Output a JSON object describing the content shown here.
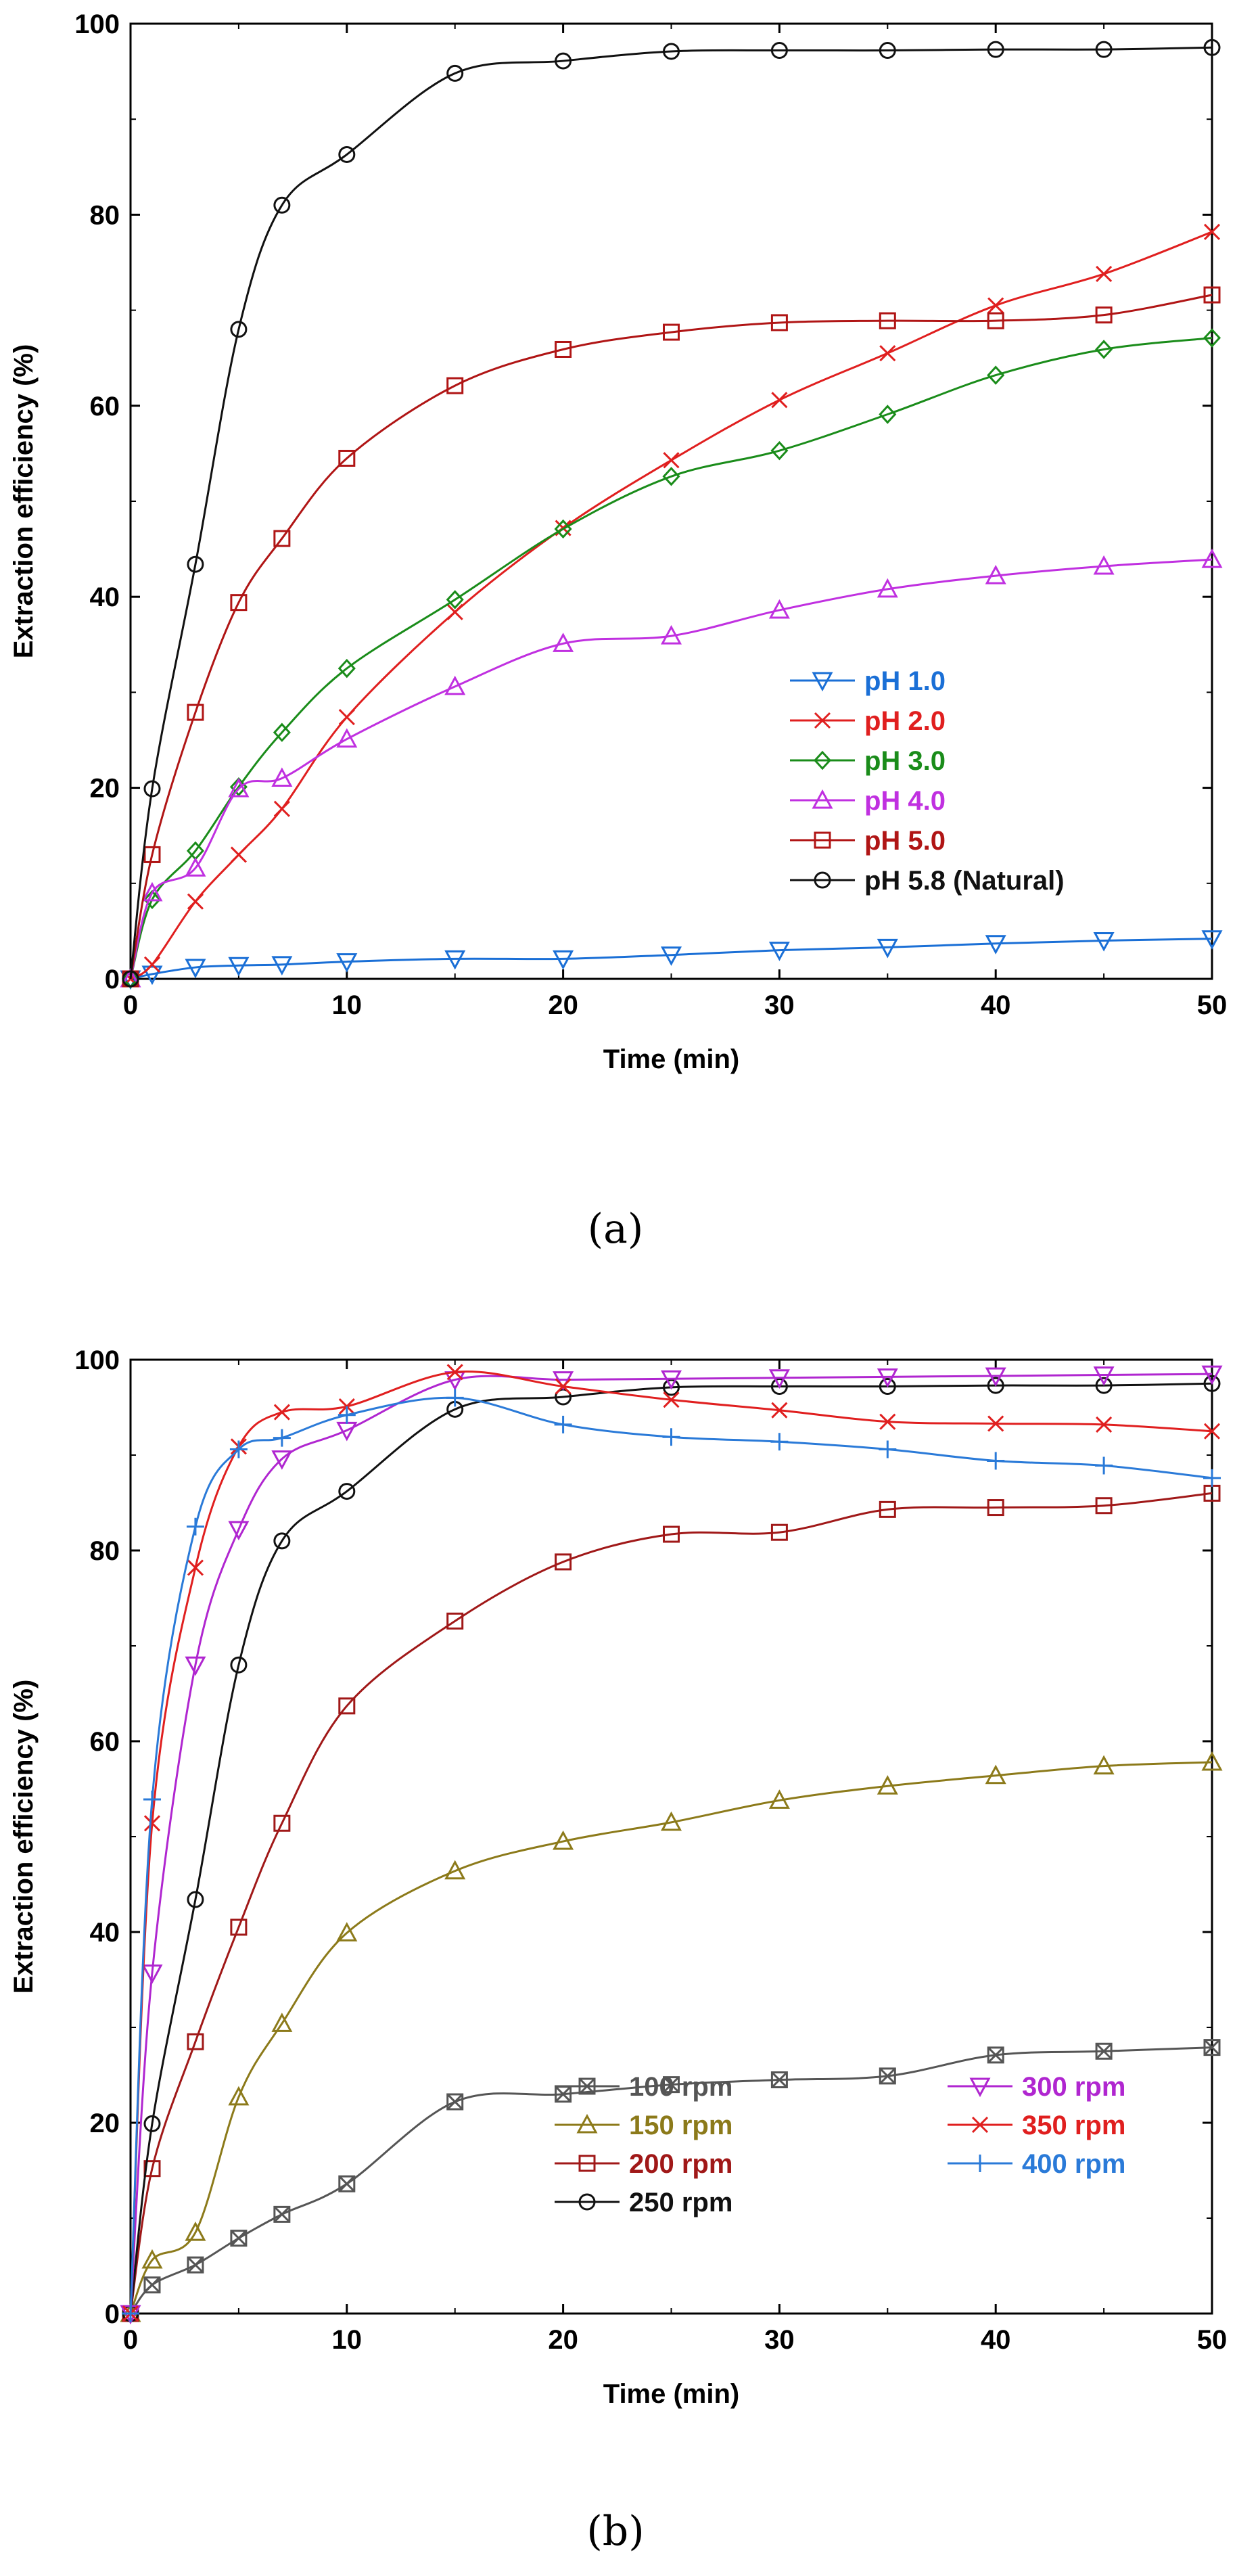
{
  "chart_data": [
    {
      "type": "line",
      "caption": "(a)",
      "xlabel": "Time (min)",
      "ylabel": "Extraction efficiency (%)",
      "xlim": [
        0,
        50
      ],
      "ylim": [
        0,
        100
      ],
      "xticks": [
        "0",
        "10",
        "20",
        "30",
        "40",
        "50"
      ],
      "yticks": [
        "0",
        "20",
        "40",
        "60",
        "80",
        "100"
      ],
      "legend_position": "center-right",
      "series": [
        {
          "name": "pH 1.0",
          "color": "#1a6fd6",
          "marker": "triangle-down",
          "x": [
            0,
            1,
            3,
            5,
            7,
            10,
            15,
            20,
            25,
            30,
            35,
            40,
            45,
            50
          ],
          "y": [
            0,
            0.5,
            1.2,
            1.4,
            1.5,
            1.8,
            2.1,
            2.1,
            2.5,
            3.0,
            3.3,
            3.7,
            4.0,
            4.2
          ]
        },
        {
          "name": "pH 2.0",
          "color": "#e01f1f",
          "marker": "x",
          "x": [
            0,
            1,
            3,
            5,
            7,
            10,
            15,
            20,
            25,
            30,
            35,
            40,
            45,
            50
          ],
          "y": [
            0,
            1.5,
            8.1,
            13.0,
            17.8,
            27.4,
            38.4,
            47.2,
            54.3,
            60.6,
            65.5,
            70.5,
            73.8,
            78.2
          ]
        },
        {
          "name": "pH 3.0",
          "color": "#1a8c1a",
          "marker": "diamond",
          "x": [
            0,
            1,
            3,
            5,
            7,
            10,
            15,
            20,
            25,
            30,
            35,
            40,
            45,
            50
          ],
          "y": [
            0,
            8.3,
            13.4,
            20.1,
            25.8,
            32.5,
            39.7,
            47.1,
            52.6,
            55.3,
            59.1,
            63.2,
            65.9,
            67.1
          ]
        },
        {
          "name": "pH 4.0",
          "color": "#c030e0",
          "marker": "triangle-up",
          "x": [
            0,
            1,
            3,
            5,
            7,
            10,
            15,
            20,
            25,
            30,
            35,
            40,
            45,
            50
          ],
          "y": [
            0,
            9.0,
            11.6,
            19.9,
            21.0,
            25.1,
            30.6,
            35.1,
            35.9,
            38.6,
            40.8,
            42.2,
            43.2,
            43.9
          ]
        },
        {
          "name": "pH 5.0",
          "color": "#b01515",
          "marker": "square",
          "x": [
            0,
            1,
            3,
            5,
            7,
            10,
            15,
            20,
            25,
            30,
            35,
            40,
            45,
            50
          ],
          "y": [
            0,
            13.0,
            27.9,
            39.4,
            46.1,
            54.5,
            62.1,
            65.9,
            67.7,
            68.7,
            68.9,
            68.9,
            69.5,
            71.6
          ]
        },
        {
          "name": "pH 5.8 (Natural)",
          "color": "#111111",
          "marker": "circle",
          "x": [
            0,
            1,
            3,
            5,
            7,
            10,
            15,
            20,
            25,
            30,
            35,
            40,
            45,
            50
          ],
          "y": [
            0,
            19.9,
            43.4,
            68.0,
            81.0,
            86.3,
            94.8,
            96.1,
            97.1,
            97.2,
            97.2,
            97.3,
            97.3,
            97.5
          ]
        }
      ]
    },
    {
      "type": "line",
      "caption": "(b)",
      "xlabel": "Time (min)",
      "ylabel": "Extraction efficiency (%)",
      "xlim": [
        0,
        50
      ],
      "ylim": [
        0,
        100
      ],
      "xticks": [
        "0",
        "10",
        "20",
        "30",
        "40",
        "50"
      ],
      "yticks": [
        "0",
        "20",
        "40",
        "60",
        "80",
        "100"
      ],
      "legend_position": "bottom-right",
      "series": [
        {
          "name": "100 rpm",
          "color": "#555555",
          "marker": "square-x",
          "x": [
            0,
            1,
            3,
            5,
            7,
            10,
            15,
            20,
            25,
            30,
            35,
            40,
            45,
            50
          ],
          "y": [
            0,
            3.0,
            5.1,
            7.9,
            10.4,
            13.6,
            22.2,
            23.0,
            24.0,
            24.5,
            24.9,
            27.1,
            27.5,
            27.9
          ]
        },
        {
          "name": "150 rpm",
          "color": "#8c7a1a",
          "marker": "triangle-up",
          "x": [
            0,
            1,
            3,
            5,
            7,
            10,
            15,
            20,
            25,
            30,
            35,
            40,
            45,
            50
          ],
          "y": [
            0,
            5.6,
            8.5,
            22.7,
            30.4,
            39.9,
            46.4,
            49.5,
            51.5,
            53.8,
            55.3,
            56.4,
            57.4,
            57.8
          ]
        },
        {
          "name": "200 rpm",
          "color": "#a01818",
          "marker": "square",
          "x": [
            0,
            1,
            3,
            5,
            7,
            10,
            15,
            20,
            25,
            30,
            35,
            40,
            45,
            50
          ],
          "y": [
            0,
            15.2,
            28.5,
            40.5,
            51.4,
            63.7,
            72.6,
            78.8,
            81.7,
            81.9,
            84.3,
            84.5,
            84.7,
            86.0
          ]
        },
        {
          "name": "250 rpm",
          "color": "#111111",
          "marker": "circle",
          "x": [
            0,
            1,
            3,
            5,
            7,
            10,
            15,
            20,
            25,
            30,
            35,
            40,
            45,
            50
          ],
          "y": [
            0,
            19.9,
            43.4,
            68.0,
            81.0,
            86.2,
            94.8,
            96.1,
            97.1,
            97.2,
            97.2,
            97.3,
            97.3,
            97.5
          ]
        },
        {
          "name": "300 rpm",
          "color": "#b026d0",
          "marker": "triangle-down",
          "x": [
            0,
            1,
            3,
            5,
            7,
            10,
            15,
            20,
            25,
            30,
            35,
            40,
            45,
            50
          ],
          "y": [
            0,
            35.7,
            68.0,
            82.2,
            89.6,
            92.6,
            97.9,
            97.9,
            98.0,
            98.1,
            98.2,
            98.3,
            98.4,
            98.5
          ]
        },
        {
          "name": "350 rpm",
          "color": "#e01f1f",
          "marker": "x",
          "x": [
            0,
            1,
            3,
            5,
            7,
            10,
            15,
            20,
            25,
            30,
            35,
            40,
            45,
            50
          ],
          "y": [
            0,
            51.4,
            78.2,
            90.9,
            94.5,
            95.1,
            98.7,
            97.2,
            95.8,
            94.7,
            93.5,
            93.3,
            93.2,
            92.5
          ]
        },
        {
          "name": "400 rpm",
          "color": "#2a7ad8",
          "marker": "plus",
          "x": [
            0,
            1,
            3,
            5,
            7,
            10,
            15,
            20,
            25,
            30,
            35,
            40,
            45,
            50
          ],
          "y": [
            0,
            53.9,
            82.5,
            90.6,
            91.8,
            94.2,
            96.0,
            93.2,
            91.9,
            91.4,
            90.6,
            89.4,
            88.9,
            87.6
          ]
        }
      ]
    }
  ]
}
